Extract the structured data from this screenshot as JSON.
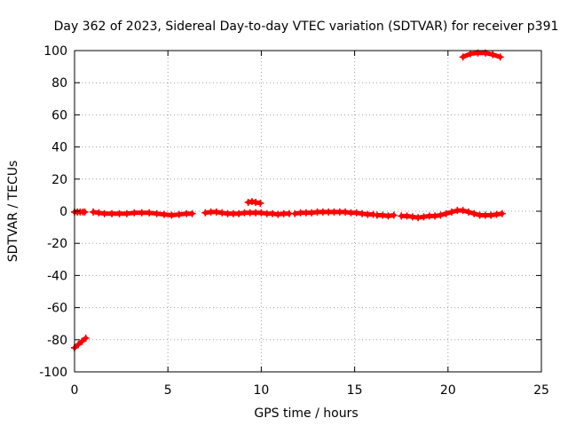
{
  "chart_data": {
    "type": "scatter",
    "title": "Day 362 of 2023, Sidereal Day-to-day VTEC variation (SDTVAR) for receiver p391",
    "xlabel": "GPS time / hours",
    "ylabel": "SDTVAR / TECUs",
    "xlim": [
      0,
      25
    ],
    "ylim": [
      -100,
      100
    ],
    "xticks": [
      0,
      5,
      10,
      15,
      20,
      25
    ],
    "yticks": [
      -100,
      -80,
      -60,
      -40,
      -20,
      0,
      20,
      40,
      60,
      80,
      100
    ],
    "xtick_labels": [
      "0",
      "5",
      "10",
      "15",
      "20",
      "25"
    ],
    "ytick_labels": [
      "-100",
      "-80",
      "-60",
      "-40",
      "-20",
      "0",
      "20",
      "40",
      "60",
      "80",
      "100"
    ],
    "grid": true,
    "marker": "plus",
    "series_color": "#ff0000",
    "segments": [
      {
        "x": [
          0.0,
          0.2,
          0.4,
          0.6
        ],
        "y": [
          -85,
          -83,
          -81,
          -79
        ]
      },
      {
        "x": [
          0.0,
          0.15,
          0.3,
          0.45,
          0.55
        ],
        "y": [
          -0.5,
          -0.5,
          -0.5,
          -0.5,
          -0.5
        ]
      },
      {
        "x": [
          1.0,
          1.3,
          1.6,
          2.0,
          2.4,
          2.8,
          3.2,
          3.6,
          4.0,
          4.4,
          4.8,
          5.2,
          5.6,
          6.0,
          6.3
        ],
        "y": [
          -0.5,
          -1.0,
          -1.5,
          -1.5,
          -1.5,
          -1.5,
          -1.0,
          -1.0,
          -1.0,
          -1.5,
          -2.0,
          -2.5,
          -2.0,
          -1.5,
          -1.5
        ]
      },
      {
        "x": [
          7.0,
          7.3,
          7.6,
          7.9,
          8.2,
          8.5,
          8.8,
          9.1,
          9.4,
          9.7,
          10.0,
          10.3,
          10.6,
          10.9,
          11.2,
          11.5
        ],
        "y": [
          -1.0,
          -0.5,
          -0.5,
          -1.0,
          -1.5,
          -1.5,
          -1.5,
          -1.0,
          -1.0,
          -1.0,
          -1.0,
          -1.5,
          -1.5,
          -2.0,
          -1.5,
          -1.5
        ]
      },
      {
        "x": [
          9.3,
          9.5,
          9.7,
          9.95
        ],
        "y": [
          5.5,
          6.0,
          5.5,
          5.0
        ]
      },
      {
        "x": [
          11.8,
          12.1,
          12.4,
          12.7,
          13.0,
          13.3,
          13.6,
          13.9,
          14.2,
          14.5,
          14.8,
          15.1,
          15.4,
          15.7,
          16.0
        ],
        "y": [
          -1.5,
          -1.0,
          -1.0,
          -1.0,
          -0.5,
          -0.5,
          -0.5,
          -0.5,
          -0.5,
          -0.5,
          -1.0,
          -1.0,
          -1.5,
          -2.0,
          -2.0
        ]
      },
      {
        "x": [
          16.2,
          16.5,
          16.8,
          17.1
        ],
        "y": [
          -2.5,
          -2.5,
          -3.0,
          -2.5
        ]
      },
      {
        "x": [
          17.5,
          17.8,
          18.1,
          18.4,
          18.7,
          19.0,
          19.3,
          19.6,
          19.9,
          20.2,
          20.5,
          20.8,
          21.1,
          21.4,
          21.7,
          22.0,
          22.3,
          22.6,
          22.9
        ],
        "y": [
          -3.0,
          -3.0,
          -3.5,
          -4.0,
          -3.5,
          -3.0,
          -3.0,
          -2.5,
          -1.5,
          -0.5,
          0.5,
          0.5,
          -0.5,
          -1.5,
          -2.5,
          -2.5,
          -2.5,
          -2.0,
          -1.5
        ]
      },
      {
        "x": [
          20.8,
          21.2,
          21.6,
          22.0,
          22.4,
          22.8
        ],
        "y": [
          96,
          98,
          98.5,
          98.5,
          97.5,
          96
        ]
      }
    ]
  }
}
